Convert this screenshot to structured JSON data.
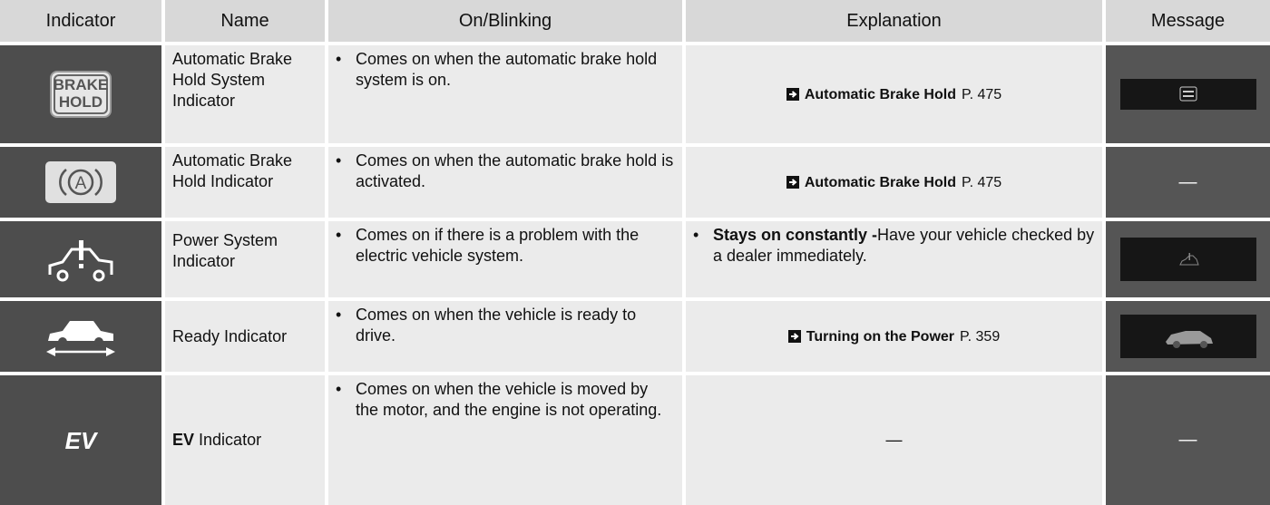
{
  "header": {
    "columns": [
      "Indicator",
      "Name",
      "On/Blinking",
      "Explanation",
      "Message"
    ]
  },
  "rows": [
    {
      "icon_text": [
        "BRAKE",
        "HOLD"
      ],
      "name": "Automatic Brake Hold System Indicator",
      "on_blinking": "Comes on when the automatic brake hold system is on.",
      "explanation": {
        "link": "Automatic Brake Hold",
        "page": "P. 475"
      }
    },
    {
      "icon_text": [
        "A"
      ],
      "name": "Automatic Brake Hold Indicator",
      "on_blinking": "Comes on when the automatic brake hold is activated.",
      "explanation": {
        "link": "Automatic Brake Hold",
        "page": "P. 475"
      },
      "message": "—"
    },
    {
      "name": "Power System Indicator",
      "on_blinking": "Comes on if there is a problem with the electric vehicle system.",
      "explanation": {
        "bold": "Stays on constantly -",
        "text": "Have your vehicle checked by a dealer immediately."
      }
    },
    {
      "name": "Ready Indicator",
      "on_blinking": "Comes on when the vehicle is ready to drive.",
      "explanation": {
        "link": "Turning on the Power",
        "page": "P. 359"
      }
    },
    {
      "icon_text": [
        "EV"
      ],
      "name_bold": "EV",
      "name": "Indicator",
      "on_blinking": "Comes on when the vehicle is moved by the motor, and the engine is not operating.",
      "explanation": {
        "text": "—"
      },
      "message": "—"
    }
  ]
}
